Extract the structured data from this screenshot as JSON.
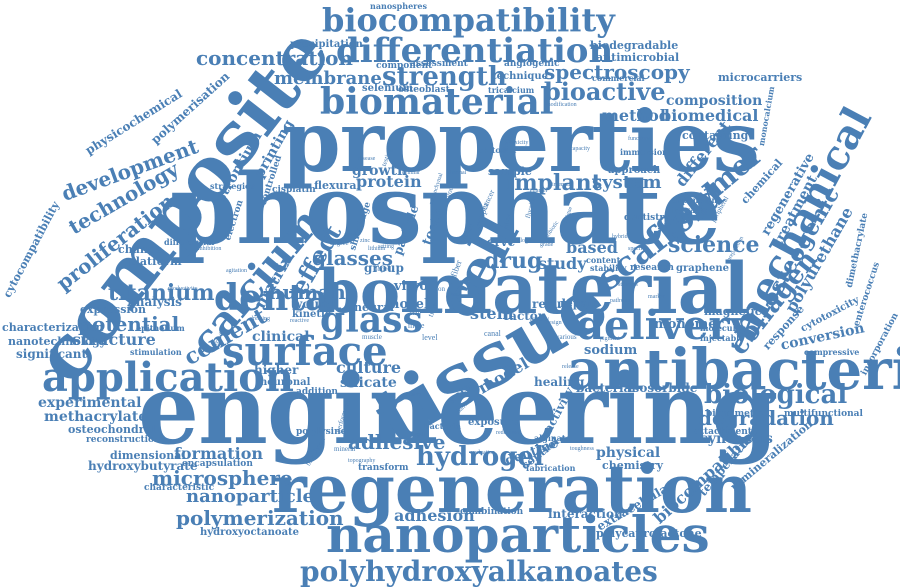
{
  "colors": {
    "word": "#4a7fb5",
    "background": "#ffffff"
  },
  "words": {
    "biocompatibility": "biocompatibility",
    "differentiation": "differentiation",
    "concentration": "concentration",
    "membrane": "membrane",
    "strength": "strength",
    "spectroscopy": "spectroscopy",
    "biomaterial": "biomaterial",
    "bioactive": "bioactive",
    "composite": "composite",
    "properties": "properties",
    "phosphate": "phosphate",
    "material": "material",
    "bone": "bone",
    "cell": "cell",
    "calcium": "calcium",
    "dental": "dental",
    "tissue": "tissue",
    "antibacterial": "antibacterial",
    "engineering": "engineering",
    "regeneration": "regeneration",
    "nanoparticles": "nanoparticles",
    "polyhydroxyalkanoates": "polyhydroxyalkanoates",
    "application": "application",
    "surface": "surface",
    "delivery": "delivery",
    "mechanical": "mechanical",
    "scaffold": "scaffold",
    "polymer": "polymer",
    "collagen": "collagen",
    "osteogenic": "osteogenic",
    "biological": "biological",
    "degradation": "degradation",
    "hydrogel": "hydrogel",
    "adhesive": "adhesive",
    "polymerization": "polymerization",
    "microsphere": "microsphere",
    "nanoparticle": "nanoparticle",
    "formation": "formation",
    "glass": "glass",
    "glasses": "glasses",
    "cement": "cement",
    "titanium": "titanium",
    "potential": "potential",
    "structure": "structure",
    "development": "development",
    "technology": "technology",
    "proliferation": "proliferation",
    "human": "human",
    "effect": "effect",
    "matrix": "matrix",
    "implant": "implant",
    "protein": "protein",
    "growth": "growth",
    "drug": "drug",
    "study": "study",
    "based": "based",
    "science": "science",
    "system": "system",
    "different": "different",
    "method": "method",
    "biomedical": "biomedical",
    "composition": "composition",
    "polyurethane": "polyurethane",
    "model": "model",
    "culture": "culture",
    "silicate": "silicate",
    "stem": "stem",
    "factor": "factor",
    "sodium": "sodium",
    "isosorbide": "isosorbide",
    "bacterial": "bacterial",
    "dentine": "dentine",
    "physical": "physical",
    "chemistry": "chemistry",
    "adhesion": "adhesion",
    "interaction": "interaction",
    "extracellular": "extracellular",
    "biocompatible": "biocompatible",
    "synthesis": "synthesis",
    "polycaprolactone": "polycaprolactone",
    "experimental": "experimental",
    "methacrylate": "methacrylate",
    "osteochondral": "osteochondral",
    "reconstruction": "reconstruction",
    "dimensional": "dimensional",
    "hydroxybutyrate": "hydroxybutyrate",
    "encapsulation": "encapsulation",
    "characteristic": "characteristic",
    "hydroxyoctanoate": "hydroxyoctanoate",
    "significant": "significant",
    "nanotechnology": "nanotechnology",
    "characterization": "characterization",
    "analysis": "analysis",
    "expression": "expression",
    "cytocompatibility": "cytocompatibility",
    "platform": "platform",
    "change": "change",
    "wound": "wound",
    "kinetic": "kinetic",
    "clinical": "clinical",
    "higher": "higher",
    "neural": "neural",
    "novel": "novel",
    "vitro": "vitro",
    "group": "group",
    "result": "result",
    "repair": "repair",
    "healing": "healing",
    "activity": "activity",
    "bacteria": "bacteria",
    "exposure": "exposure",
    "control": "control",
    "alginate": "alginate",
    "water": "water",
    "particle": "particle",
    "tooth": "tooth",
    "flexural": "flexural",
    "printing": "printing",
    "strontium": "strontium",
    "physicochemical": "physicochemical",
    "polymerisation": "polymerisation",
    "precipitation": "precipitation",
    "nanospheres": "nanospheres",
    "component": "component",
    "assessment": "assessment",
    "selenium": "selenium",
    "osteoblast": "osteoblast",
    "angiogenic": "angiogenic",
    "technique": "technique",
    "tricalcium": "tricalcium",
    "biodegradable": "biodegradable",
    "antimicrobial": "antimicrobial",
    "commercial": "commercial",
    "microcarriers": "microcarriers",
    "monocalcium": "monocalcium",
    "containing": "containing",
    "treatment": "treatment",
    "regenerative": "regenerative",
    "chemical": "chemical",
    "dimethacrylate": "dimethacrylate",
    "enterococcus": "enterococcus",
    "cytotoxicity": "cytotoxicity",
    "incorporation": "incorporation",
    "compressive": "compressive",
    "response": "response",
    "conversion": "conversion",
    "monomer": "monomer",
    "magnetic": "magnetic",
    "biomimetic": "biomimetic",
    "multifunctional": "multifunctional",
    "attachment": "attachment",
    "temperature": "temperature",
    "remineralization": "remineralization",
    "graphene": "graphene",
    "research": "research",
    "dentistry": "dentistry",
    "sample": "sample",
    "chitosan": "chitosan",
    "immersion": "immersion",
    "approach": "approach",
    "viability": "viability",
    "expansion": "expansion",
    "porous": "porous",
    "copper": "copper",
    "zirconia": "zirconia",
    "silver": "silver",
    "fluoride": "fluoride",
    "nerve": "nerve",
    "cancer": "cancer",
    "stability": "stability",
    "content": "content",
    "testing": "testing",
    "shrinkage": "shrinkage",
    "degree": "degree",
    "agent": "agent",
    "zinc": "zinc",
    "lithium": "lithium",
    "fiber": "fiber",
    "controlled": "controlled",
    "strategies": "strategies",
    "cisplatin": "cisplatin",
    "electron": "electron",
    "differential": "differential",
    "productivity": "productivity",
    "epithelium": "epithelium",
    "stimulation": "stimulation",
    "neuronal": "neuronal",
    "addition": "addition",
    "polylysine": "polylysine",
    "performance": "performance",
    "mineral": "mineral",
    "transform": "transform",
    "topography": "topography",
    "biopolymer": "biopolymer",
    "combination": "combination",
    "fabrication": "fabrication",
    "toughness": "toughness",
    "reduction": "reduction",
    "evaluation": "evaluation",
    "muscle": "muscle",
    "doped": "doped",
    "level": "level",
    "more": "more",
    "time": "time",
    "size": "size",
    "canal": "canal",
    "review": "review",
    "design": "design",
    "ion": "ion",
    "load": "load",
    "pigment": "pigment",
    "molecular": "molecular",
    "injectable": "injectable",
    "modification": "modification",
    "capacity": "capacity",
    "functional": "functional",
    "biofilm": "biofilm",
    "toxicity": "toxicity",
    "irrigation": "irrigation",
    "peripheral": "peripheral",
    "preparation": "preparation",
    "thermal": "thermal",
    "interval": "interval",
    "various": "various",
    "stiffness": "stiffness",
    "fatigue": "fatigue",
    "enamel": "enamel",
    "disease": "disease",
    "cellular": "cellular",
    "mesenchymal": "mesenchymal",
    "antibiotic": "antibiotic",
    "hybrid": "hybrid",
    "release": "release",
    "agitation": "agitation",
    "inhibition": "inhibition",
    "dressing": "dressing",
    "reactive": "reactive",
    "observed": "observed",
    "ability": "ability",
    "setting": "setting",
    "barrier": "barrier",
    "length": "length",
    "analog": "analog",
    "grade": "grade",
    "specific": "specific",
    "pathway": "pathway",
    "marker": "marker"
  }
}
